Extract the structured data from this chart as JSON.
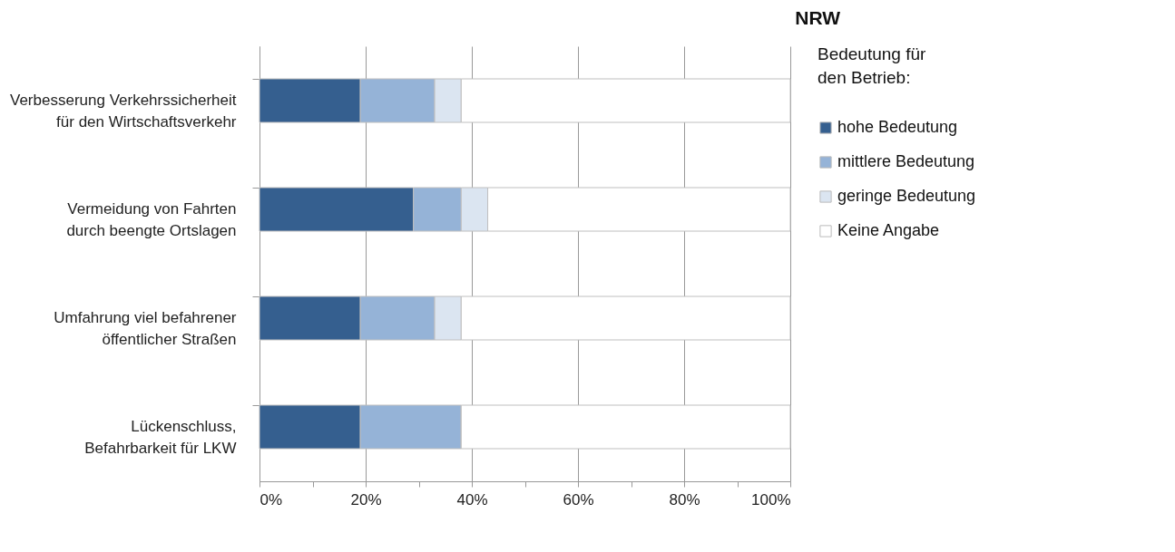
{
  "chart_data": {
    "type": "bar",
    "orientation": "horizontal",
    "stacked": true,
    "title": "NRW",
    "legend_title": "Bedeutung für\nden Betrieb:",
    "categories": [
      "Verbesserung Verkehrssicherheit\nfür den Wirtschaftsverkehr",
      "Vermeidung von Fahrten\ndurch beengte Ortslagen",
      "Umfahrung viel befahrener\nöffentlicher Straßen",
      "Lückenschluss,\nBefahrbarkeit für LKW"
    ],
    "series": [
      {
        "name": "hohe Bedeutung",
        "color": "#355f8f",
        "values": [
          19,
          29,
          19,
          19
        ]
      },
      {
        "name": "mittlere Bedeutung",
        "color": "#95b3d7",
        "values": [
          14,
          9,
          14,
          19
        ]
      },
      {
        "name": "geringe Bedeutung",
        "color": "#dbe5f1",
        "values": [
          5,
          5,
          5,
          0
        ]
      },
      {
        "name": "Keine Angabe",
        "color": "#ffffff",
        "values": [
          62,
          57,
          62,
          62
        ]
      }
    ],
    "xlim": [
      0,
      100
    ],
    "xticks": [
      {
        "value": 0,
        "label": "0%"
      },
      {
        "value": 10,
        "label": null
      },
      {
        "value": 20,
        "label": "20%"
      },
      {
        "value": 30,
        "label": null
      },
      {
        "value": 40,
        "label": "40%"
      },
      {
        "value": 50,
        "label": null
      },
      {
        "value": 60,
        "label": "60%"
      },
      {
        "value": 70,
        "label": null
      },
      {
        "value": 80,
        "label": "80%"
      },
      {
        "value": 90,
        "label": null
      },
      {
        "value": 100,
        "label": "100%"
      }
    ],
    "grid": "x",
    "legend": "right"
  }
}
